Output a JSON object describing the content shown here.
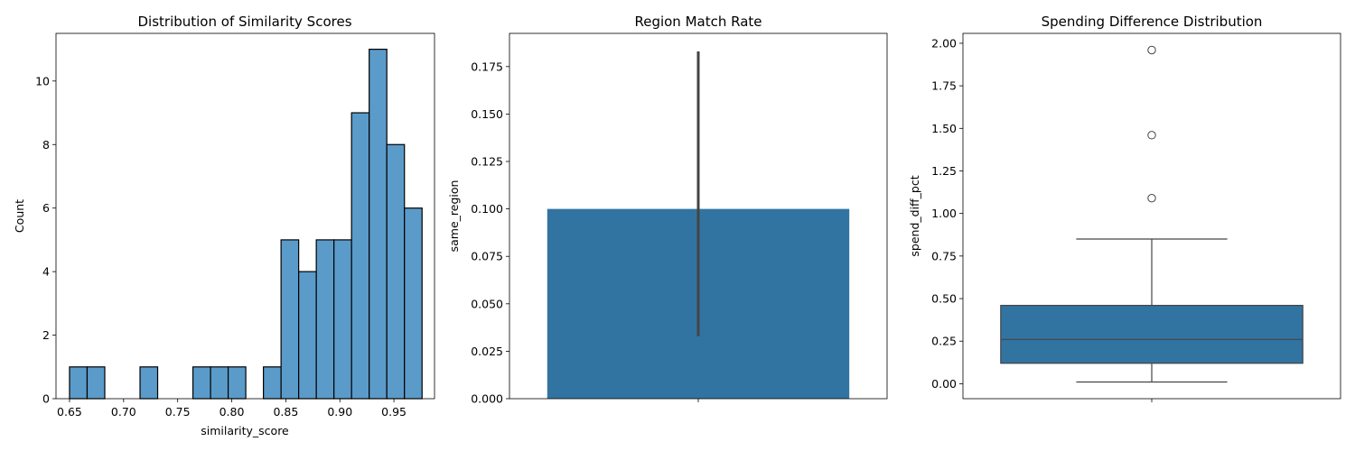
{
  "chart_data": [
    {
      "type": "histogram",
      "title": "Distribution of Similarity Scores",
      "xlabel": "similarity_score",
      "ylabel": "Count",
      "xlim": [
        0.6375,
        0.9875
      ],
      "ylim": [
        0,
        11.5
      ],
      "xticks": [
        0.65,
        0.7,
        0.75,
        0.8,
        0.85,
        0.9,
        0.95
      ],
      "xtick_labels": [
        "0.65",
        "0.70",
        "0.75",
        "0.80",
        "0.85",
        "0.90",
        "0.95"
      ],
      "yticks": [
        0,
        2,
        4,
        6,
        8,
        10
      ],
      "ytick_labels": [
        "0",
        "2",
        "4",
        "6",
        "8",
        "10"
      ],
      "bin_edges": [
        0.65,
        0.6663,
        0.6826,
        0.6989,
        0.7152,
        0.7315,
        0.7478,
        0.7641,
        0.7804,
        0.7967,
        0.813,
        0.8293,
        0.8456,
        0.8619,
        0.8782,
        0.8945,
        0.9108,
        0.9271,
        0.9434,
        0.9597,
        0.976
      ],
      "counts": [
        1,
        1,
        0,
        0,
        1,
        0,
        0,
        1,
        1,
        1,
        0,
        1,
        5,
        4,
        5,
        5,
        9,
        11,
        8,
        6
      ],
      "color": "#5b9bca",
      "edgecolor": "#000000"
    },
    {
      "type": "bar",
      "title": "Region Match Rate",
      "xlabel": "",
      "ylabel": "same_region",
      "categories": [
        ""
      ],
      "values": [
        0.1
      ],
      "error_bar": [
        0.033,
        0.183
      ],
      "ylim": [
        0,
        0.1925
      ],
      "yticks": [
        0,
        0.025,
        0.05,
        0.075,
        0.1,
        0.125,
        0.15,
        0.175
      ],
      "ytick_labels": [
        "0.000",
        "0.025",
        "0.050",
        "0.075",
        "0.100",
        "0.125",
        "0.150",
        "0.175"
      ],
      "color": "#3274a1",
      "errcolor": "#444444"
    },
    {
      "type": "box",
      "title": "Spending Difference Distribution",
      "xlabel": "",
      "ylabel": "spend_diff_pct",
      "whisker_low": 0.01,
      "q1": 0.12,
      "median": 0.26,
      "q3": 0.46,
      "whisker_high": 0.85,
      "outliers": [
        1.09,
        1.46,
        1.96
      ],
      "ylim": [
        -0.088,
        2.058
      ],
      "yticks": [
        0,
        0.25,
        0.5,
        0.75,
        1.0,
        1.25,
        1.5,
        1.75,
        2.0
      ],
      "ytick_labels": [
        "0.00",
        "0.25",
        "0.50",
        "0.75",
        "1.00",
        "1.25",
        "1.50",
        "1.75",
        "2.00"
      ],
      "color": "#3274a1",
      "linecolor": "#444444"
    }
  ]
}
